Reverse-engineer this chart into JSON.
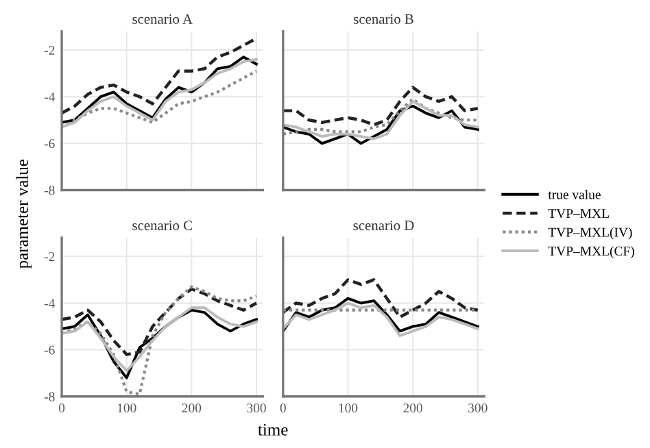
{
  "chart_data": [
    {
      "type": "line",
      "title": "scenario A",
      "ylabel": "parameter value",
      "x": [
        0,
        20,
        40,
        60,
        80,
        100,
        120,
        140,
        160,
        180,
        200,
        220,
        240,
        260,
        280,
        300
      ],
      "xlim": [
        0,
        310
      ],
      "ylim": [
        -8,
        -1.2
      ],
      "xticks": [
        0,
        100,
        200,
        300
      ],
      "yticks": [
        -8,
        -6,
        -4,
        -2
      ],
      "grid": true,
      "legend": "right",
      "tick_labels": "y",
      "series": [
        {
          "name": "true value",
          "color": "#000000",
          "line_style": "solid",
          "values": [
            -5.1,
            -5.0,
            -4.5,
            -4.0,
            -3.8,
            -4.3,
            -4.6,
            -4.9,
            -4.1,
            -3.6,
            -3.8,
            -3.4,
            -2.8,
            -2.7,
            -2.3,
            -2.6
          ]
        },
        {
          "name": "TVP–MXL",
          "color": "#222222",
          "line_style": "dashed",
          "values": [
            -4.7,
            -4.4,
            -3.9,
            -3.6,
            -3.5,
            -3.8,
            -4.0,
            -4.3,
            -3.6,
            -2.9,
            -2.9,
            -2.8,
            -2.3,
            -2.1,
            -1.8,
            -1.5
          ]
        },
        {
          "name": "TVP–MXL(IV)",
          "color": "#888888",
          "line_style": "dotted",
          "values": [
            -5.3,
            -5.0,
            -4.7,
            -4.5,
            -4.5,
            -4.7,
            -4.9,
            -5.1,
            -4.7,
            -4.3,
            -4.2,
            -4.0,
            -3.8,
            -3.5,
            -3.2,
            -2.9
          ]
        },
        {
          "name": "TVP–MXL(CF)",
          "color": "#bbbbbb",
          "line_style": "solid",
          "values": [
            -5.3,
            -5.1,
            -4.6,
            -4.2,
            -4.0,
            -4.4,
            -4.7,
            -5.0,
            -4.2,
            -3.8,
            -3.7,
            -3.4,
            -3.0,
            -2.8,
            -2.5,
            -2.4
          ]
        }
      ]
    },
    {
      "type": "line",
      "title": "scenario B",
      "x": [
        0,
        20,
        40,
        60,
        80,
        100,
        120,
        140,
        160,
        180,
        200,
        220,
        240,
        260,
        280,
        300
      ],
      "xlim": [
        0,
        310
      ],
      "ylim": [
        -8,
        -1.2
      ],
      "xticks": [
        0,
        100,
        200,
        300
      ],
      "yticks": [
        -8,
        -6,
        -4,
        -2
      ],
      "grid": true,
      "tick_labels": false,
      "series": [
        {
          "color": "#000000",
          "line_style": "solid",
          "values": [
            -5.3,
            -5.5,
            -5.6,
            -6.0,
            -5.8,
            -5.6,
            -6.0,
            -5.7,
            -5.4,
            -4.6,
            -4.4,
            -4.7,
            -4.9,
            -4.6,
            -5.3,
            -5.4
          ]
        },
        {
          "color": "#222222",
          "line_style": "dashed",
          "values": [
            -4.6,
            -4.6,
            -5.0,
            -5.1,
            -5.0,
            -4.9,
            -5.0,
            -5.2,
            -5.0,
            -4.2,
            -3.6,
            -4.0,
            -4.2,
            -4.0,
            -4.6,
            -4.5
          ]
        },
        {
          "color": "#888888",
          "line_style": "dotted",
          "values": [
            -5.6,
            -5.5,
            -5.4,
            -5.4,
            -5.5,
            -5.5,
            -5.5,
            -5.3,
            -5.2,
            -4.6,
            -4.1,
            -4.5,
            -4.7,
            -4.9,
            -5.0,
            -5.0
          ]
        },
        {
          "color": "#bbbbbb",
          "line_style": "solid",
          "values": [
            -5.2,
            -5.3,
            -5.5,
            -5.7,
            -5.6,
            -5.6,
            -5.7,
            -5.8,
            -5.6,
            -4.8,
            -4.2,
            -4.5,
            -4.8,
            -4.8,
            -5.2,
            -5.3
          ]
        }
      ]
    },
    {
      "type": "line",
      "title": "scenario C",
      "xlabel": "time",
      "x": [
        0,
        20,
        40,
        60,
        80,
        100,
        120,
        140,
        160,
        180,
        200,
        220,
        240,
        260,
        280,
        300
      ],
      "xlim": [
        0,
        310
      ],
      "ylim": [
        -8,
        -1.2
      ],
      "xticks": [
        0,
        100,
        200,
        300
      ],
      "yticks": [
        -8,
        -6,
        -4,
        -2
      ],
      "grid": true,
      "series": [
        {
          "color": "#000000",
          "line_style": "solid",
          "values": [
            -5.1,
            -5.0,
            -4.5,
            -5.4,
            -6.5,
            -7.2,
            -5.9,
            -5.5,
            -5.0,
            -4.6,
            -4.3,
            -4.4,
            -4.9,
            -5.2,
            -4.9,
            -4.7
          ]
        },
        {
          "color": "#222222",
          "line_style": "dashed",
          "values": [
            -4.7,
            -4.6,
            -4.3,
            -4.8,
            -5.6,
            -6.2,
            -6.1,
            -5.0,
            -4.4,
            -3.8,
            -3.4,
            -3.6,
            -3.9,
            -4.1,
            -4.3,
            -4.0
          ]
        },
        {
          "color": "#888888",
          "line_style": "dotted",
          "values": [
            -5.3,
            -5.1,
            -4.8,
            -5.3,
            -6.2,
            -7.8,
            -7.9,
            -5.4,
            -4.4,
            -3.8,
            -3.3,
            -3.5,
            -3.8,
            -3.9,
            -3.9,
            -3.7
          ]
        },
        {
          "color": "#bbbbbb",
          "line_style": "solid",
          "values": [
            -5.3,
            -5.2,
            -4.8,
            -5.5,
            -6.3,
            -6.9,
            -6.3,
            -5.6,
            -5.0,
            -4.6,
            -4.2,
            -4.2,
            -4.6,
            -4.9,
            -5.0,
            -4.8
          ]
        }
      ]
    },
    {
      "type": "line",
      "title": "scenario D",
      "x": [
        0,
        20,
        40,
        60,
        80,
        100,
        120,
        140,
        160,
        180,
        200,
        220,
        240,
        260,
        280,
        300
      ],
      "xlim": [
        0,
        310
      ],
      "ylim": [
        -8,
        -1.2
      ],
      "xticks": [
        0,
        100,
        200,
        300
      ],
      "yticks": [
        -8,
        -6,
        -4,
        -2
      ],
      "grid": true,
      "tick_labels": "x",
      "series": [
        {
          "color": "#000000",
          "line_style": "solid",
          "values": [
            -5.2,
            -4.4,
            -4.6,
            -4.3,
            -4.2,
            -3.8,
            -4.0,
            -3.9,
            -4.5,
            -5.2,
            -5.0,
            -4.9,
            -4.4,
            -4.6,
            -4.8,
            -5.0
          ]
        },
        {
          "color": "#222222",
          "line_style": "dashed",
          "values": [
            -4.4,
            -4.0,
            -4.1,
            -3.8,
            -3.6,
            -3.0,
            -3.2,
            -3.0,
            -3.8,
            -4.6,
            -4.3,
            -4.0,
            -3.5,
            -3.8,
            -4.2,
            -4.3
          ]
        },
        {
          "color": "#888888",
          "line_style": "dotted",
          "values": [
            -4.3,
            -4.3,
            -4.3,
            -4.3,
            -4.3,
            -4.3,
            -4.3,
            -4.3,
            -4.3,
            -4.3,
            -4.3,
            -4.3,
            -4.3,
            -4.3,
            -4.3,
            -4.3
          ]
        },
        {
          "color": "#bbbbbb",
          "line_style": "solid",
          "values": [
            -5.1,
            -4.5,
            -4.7,
            -4.5,
            -4.3,
            -4.0,
            -4.2,
            -4.1,
            -4.6,
            -5.4,
            -5.2,
            -5.0,
            -4.6,
            -4.7,
            -4.9,
            -5.1
          ]
        }
      ]
    }
  ]
}
